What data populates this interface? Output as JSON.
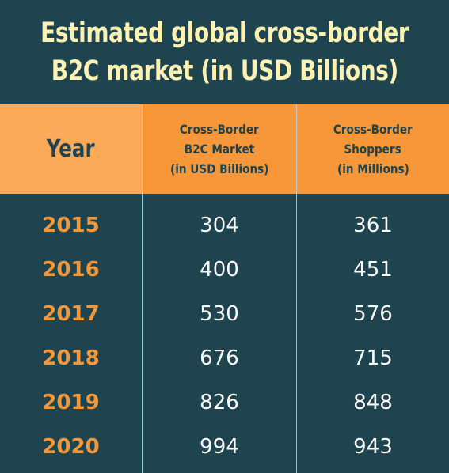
{
  "title": {
    "line1": "Estimated global cross-border",
    "line2": "B2C market (in USD Billions)"
  },
  "colors": {
    "background": "#1e4450",
    "header": "#f7973a",
    "year_header": "#fca95a",
    "title_text": "#fdf1b4",
    "year_text": "#f7973a",
    "value_text": "#ffffff"
  },
  "chart_data": {
    "type": "table",
    "columns": [
      {
        "label": "Year"
      },
      {
        "line1": "Cross-Border",
        "line2": "B2C Market",
        "line3": "(in USD Billions)"
      },
      {
        "line1": "Cross-Border",
        "line2": "Shoppers",
        "line3": "(in Millions)"
      }
    ],
    "rows": [
      {
        "year": "2015",
        "market": "304",
        "shoppers": "361"
      },
      {
        "year": "2016",
        "market": "400",
        "shoppers": "451"
      },
      {
        "year": "2017",
        "market": "530",
        "shoppers": "576"
      },
      {
        "year": "2018",
        "market": "676",
        "shoppers": "715"
      },
      {
        "year": "2019",
        "market": "826",
        "shoppers": "848"
      },
      {
        "year": "2020",
        "market": "994",
        "shoppers": "943"
      }
    ]
  }
}
